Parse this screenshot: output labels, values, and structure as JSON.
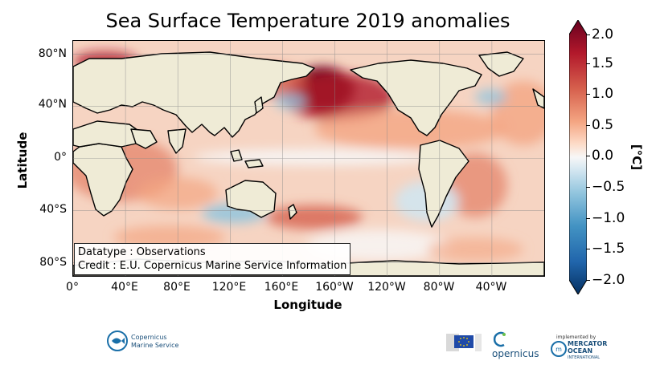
{
  "title": "Sea Surface Temperature 2019 anomalies",
  "axes": {
    "xlabel": "Longitude",
    "ylabel": "Latitude",
    "lat_ticks": [
      "80°N",
      "40°N",
      "0°",
      "40°S",
      "80°S"
    ],
    "lon_ticks": [
      "0°",
      "40°E",
      "80°E",
      "120°E",
      "160°E",
      "160°W",
      "120°W",
      "80°W",
      "40°W"
    ]
  },
  "info": {
    "datatype": "Datatype : Observations",
    "credit": "Credit : E.U. Copernicus Marine Service Information"
  },
  "colorbar": {
    "unit": "[°C]",
    "ticks": [
      "2.0",
      "1.5",
      "1.0",
      "0.5",
      "0.0",
      "−0.5",
      "−1.0",
      "−1.5",
      "−2.0"
    ],
    "colors": [
      "#67001f",
      "#b2182b",
      "#d6604d",
      "#f4a582",
      "#fddbc7",
      "#f7f7f7",
      "#d1e5f0",
      "#92c5de",
      "#4393c3",
      "#2166ac",
      "#053061"
    ],
    "land_color": "#efebd6"
  },
  "logos": {
    "copernicus_marine": [
      "Copernicus",
      "Marine Service"
    ],
    "copernicus": "opernicus",
    "mercator_small": "implemented by",
    "mercator": [
      "MERCATOR",
      "OCEAN"
    ],
    "mercator_sub": "INTERNATIONAL"
  }
}
